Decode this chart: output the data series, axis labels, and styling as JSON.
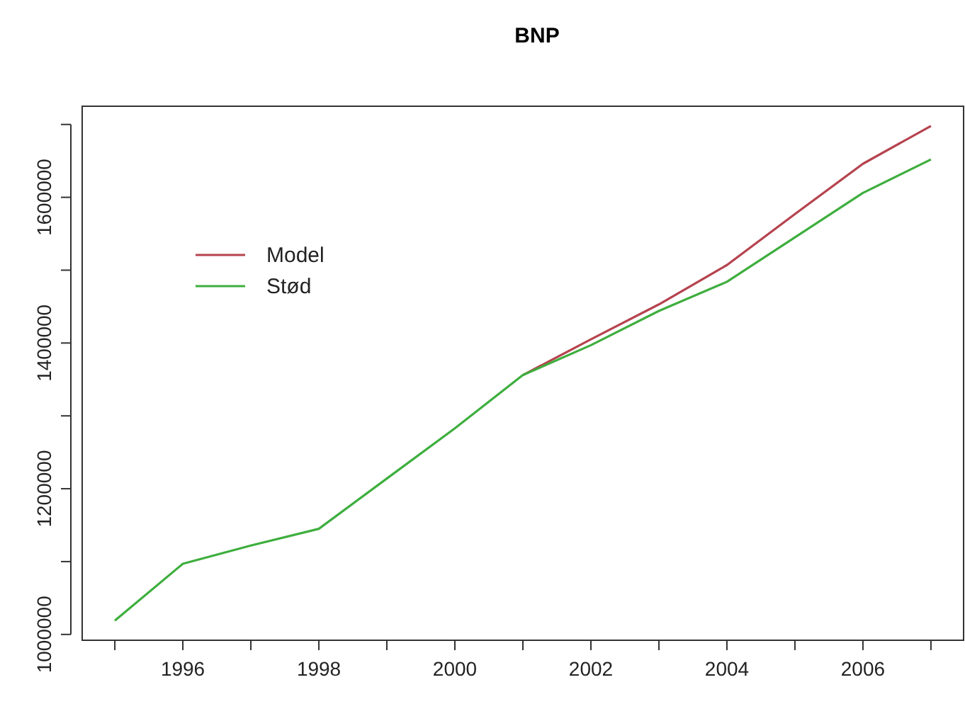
{
  "chart_data": {
    "type": "line",
    "title": "BNP",
    "x": [
      1995,
      1996,
      1997,
      1998,
      1999,
      2000,
      2001,
      2002,
      2003,
      2004,
      2005,
      2006,
      2007
    ],
    "series": [
      {
        "name": "Model",
        "color": "#b5434e",
        "values": [
          null,
          null,
          null,
          null,
          null,
          null,
          1356000,
          1405000,
          1453000,
          1507000,
          1577000,
          1646000,
          1698000
        ]
      },
      {
        "name": "Stød",
        "color": "#3eae3e",
        "values": [
          1019000,
          1097000,
          1122000,
          1145000,
          1214000,
          1283000,
          1356000,
          1397000,
          1444000,
          1484000,
          1545000,
          1606000,
          1652000
        ]
      }
    ],
    "xlim": [
      1994.52,
      2007.48
    ],
    "ylim": [
      992000,
      1725000
    ],
    "xticks": [
      {
        "value": 1995,
        "label": null
      },
      1996,
      {
        "value": 1997,
        "label": null
      },
      1998,
      {
        "value": 1999,
        "label": null
      },
      2000,
      {
        "value": 2001,
        "label": null
      },
      2002,
      {
        "value": 2003,
        "label": null
      },
      2004,
      {
        "value": 2005,
        "label": null
      },
      2006,
      {
        "value": 2007,
        "label": null
      }
    ],
    "yticks": [
      1000000,
      {
        "value": 1100000,
        "label": null
      },
      1200000,
      {
        "value": 1300000,
        "label": null
      },
      1400000,
      {
        "value": 1500000,
        "label": null
      },
      1600000,
      {
        "value": 1700000,
        "label": null
      }
    ],
    "legend": "top left",
    "grid": false,
    "line_style": "solid",
    "marker": "none"
  }
}
